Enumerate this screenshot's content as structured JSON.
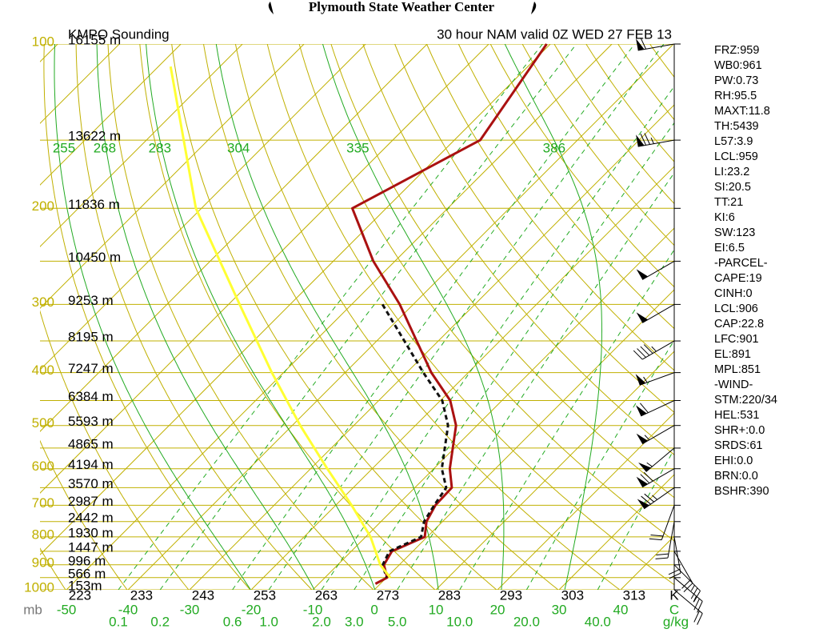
{
  "header": {
    "title": "Plymouth State Weather Center",
    "station": "KMPO Sounding",
    "valid": "30 hour NAM valid 0Z WED 27 FEB 13"
  },
  "chart_data": {
    "type": "skewt",
    "ylim": [
      100,
      1000
    ],
    "log_y": true,
    "yticks": [
      100,
      200,
      300,
      400,
      500,
      600,
      700,
      800,
      900,
      1000
    ],
    "heights": {
      "pressures": [
        100,
        150,
        200,
        250,
        300,
        350,
        400,
        450,
        500,
        550,
        600,
        650,
        700,
        750,
        800,
        850,
        900,
        950,
        1000
      ],
      "labels": [
        "16155 m",
        "13622 m",
        "11836 m",
        "10450 m",
        "9253 m",
        "8195 m",
        "7247 m",
        "6384 m",
        "5593 m",
        "4865 m",
        "4194 m",
        "3570 m",
        "2987 m",
        "2442 m",
        "1930 m",
        "1447 m",
        "996 m",
        "566 m",
        "153m"
      ]
    },
    "pressure_unit": "mb",
    "xlim": [
      -54.3,
      48.7
    ],
    "skew_deg": 45,
    "xticks": [
      -50,
      -40,
      -30,
      -20,
      -10,
      0,
      10,
      20,
      30,
      40
    ],
    "x_unit": "C",
    "theta_ticks": [
      223,
      233,
      243,
      253,
      263,
      273,
      283,
      293,
      303,
      313
    ],
    "theta_unit": "K",
    "theta_e_labels": [
      255,
      268,
      283,
      304,
      335,
      386
    ],
    "mixing_ratio_ticks": [
      0.1,
      0.2,
      0.6,
      {
        "value": 1,
        "label": "1.0"
      },
      {
        "value": 2,
        "label": "2.0"
      },
      {
        "value": 3,
        "label": "3.0"
      },
      {
        "value": 5,
        "label": "5.0"
      },
      {
        "value": 10,
        "label": "10.0"
      },
      {
        "value": 20,
        "label": "20.0"
      },
      {
        "value": 40,
        "label": "40.0"
      }
    ],
    "mixing_ratio_unit": "g/kg",
    "isotherm_color": "#c0b000",
    "theta_e_color": "#22aa22",
    "series": [
      {
        "color": "#aa1111",
        "dashed": false,
        "pressure": [
          100,
          150,
          200,
          250,
          300,
          400,
          450,
          500,
          600,
          650,
          700,
          750,
          800,
          850,
          900,
          950,
          975
        ],
        "values": [
          -60.6,
          -55.8,
          -65.5,
          -53.5,
          -42.2,
          -26,
          -18.4,
          -13.4,
          -7.4,
          -4,
          -3.8,
          -2.6,
          -0.4,
          -3.4,
          -2.5,
          0.1,
          -0.8
        ]
      },
      {
        "color": "#111111",
        "dashed": true,
        "pressure": [
          300,
          400,
          450,
          500,
          600,
          650,
          700,
          750,
          800,
          850,
          900,
          950
        ],
        "values": [
          -45,
          -27.3,
          -19.7,
          -14.7,
          -8.7,
          -4.9,
          -4,
          -3,
          -1,
          -3.8,
          -2.7,
          0
        ]
      },
      {
        "color": "#ffff33",
        "dashed": false,
        "pressure": [
          110,
          200,
          300,
          400,
          500,
          600,
          700,
          800,
          900,
          950
        ],
        "values": [
          -118,
          -90.9,
          -68.2,
          -51.9,
          -38.7,
          -27.3,
          -17.4,
          -9.2,
          -3.1,
          0.6
        ]
      }
    ],
    "winds": {
      "pressure": [
        100,
        150,
        250,
        300,
        350,
        400,
        450,
        500,
        550,
        600,
        650,
        700,
        750,
        800,
        850,
        900,
        950,
        1000
      ],
      "direction": [
        260,
        260,
        240,
        240,
        240,
        250,
        245,
        240,
        230,
        240,
        235,
        200,
        190,
        170,
        150,
        135,
        130,
        130
      ],
      "speed": [
        60,
        75,
        50,
        50,
        45,
        55,
        60,
        55,
        55,
        70,
        75,
        20,
        20,
        20,
        20,
        25,
        25,
        20
      ]
    },
    "indices": [
      "FRZ:959",
      "WB0:961",
      "PW:0.73",
      "RH:95.5",
      "MAXT:11.8",
      "TH:5439",
      "L57:3.9",
      "LCL:959",
      "LI:23.2",
      "SI:20.5",
      "TT:21",
      "KI:6",
      "SW:123",
      "EI:6.5",
      "-PARCEL-",
      "CAPE:19",
      "CINH:0",
      "LCL:906",
      "CAP:22.8",
      "LFC:901",
      "EL:891",
      "MPL:851",
      "-WIND-",
      "STM:220/34",
      "HEL:531",
      "SHR+:0.0",
      "SRDS:61",
      "EHI:0.0",
      "BRN:0.0",
      "BSHR:390"
    ]
  }
}
